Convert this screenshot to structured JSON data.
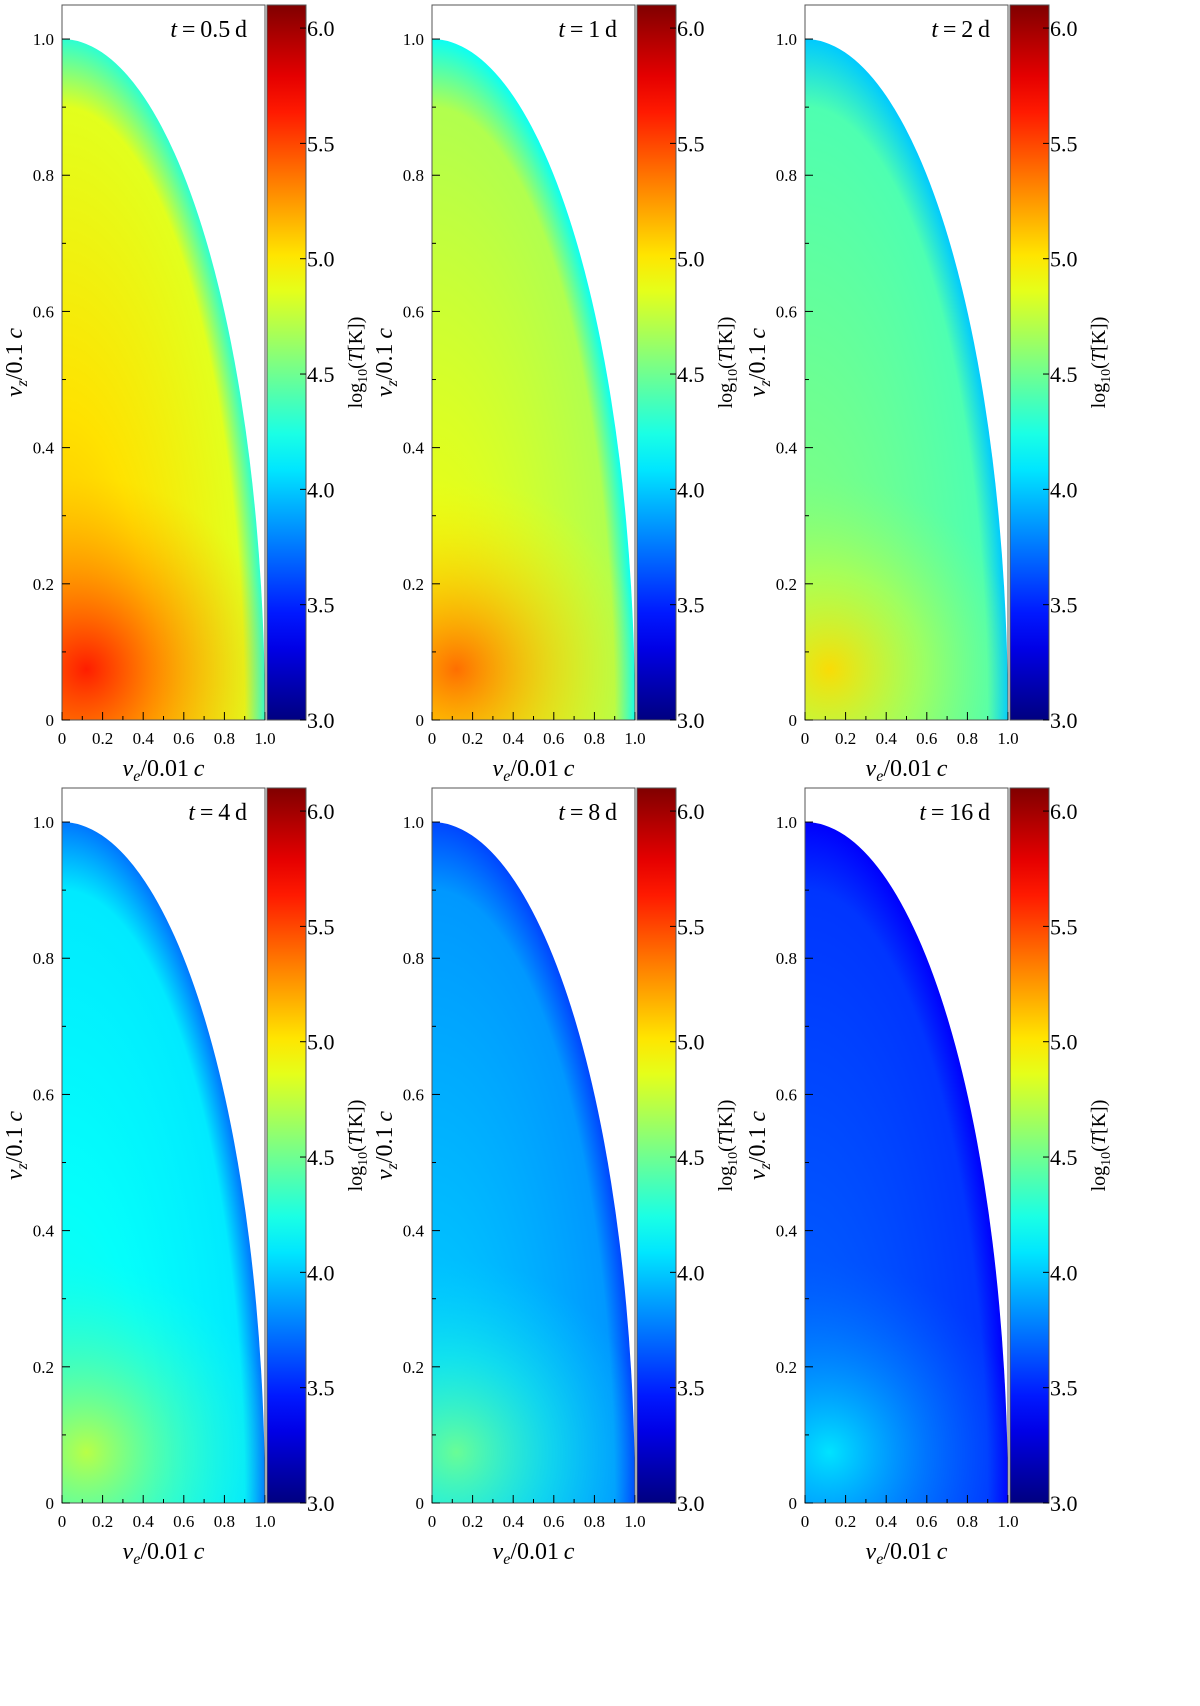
{
  "figure": {
    "ylabel": {
      "var": "v",
      "sub": "z",
      "rest": "/0.1 c"
    },
    "xlabel": {
      "var": "v",
      "sub": "e",
      "rest": "/0.01 c"
    },
    "colorbar_label": {
      "pre": "log",
      "sub": "10",
      "open": "(",
      "var": "T",
      "bracket": "[K])"
    }
  },
  "chart_data": {
    "type": "heatmap",
    "description": "Temperature maps of an elliptical ejecta quadrant at six epochs",
    "xlim": [
      0,
      1.0
    ],
    "ylim": [
      0,
      1.05
    ],
    "xticks": [
      "0",
      "0.2",
      "0.4",
      "0.6",
      "0.8",
      "1.0"
    ],
    "yticks": [
      "0",
      "0.2",
      "0.4",
      "0.6",
      "0.8",
      "1.0"
    ],
    "colorbar": {
      "colormap": "jet",
      "range": [
        3.0,
        6.1
      ],
      "ticks": [
        "3.0",
        "3.5",
        "4.0",
        "4.5",
        "5.0",
        "5.5",
        "6.0"
      ]
    },
    "panels": [
      {
        "label": "t = 0.5 d",
        "t": "0.5",
        "core_log10T": 5.65,
        "mid_log10T": 5.2,
        "outer_log10T": 4.85,
        "edge_log10T": 4.3
      },
      {
        "label": "t = 1 d",
        "t": "1",
        "core_log10T": 5.4,
        "mid_log10T": 4.95,
        "outer_log10T": 4.7,
        "edge_log10T": 4.2
      },
      {
        "label": "t = 2 d",
        "t": "2",
        "core_log10T": 5.05,
        "mid_log10T": 4.6,
        "outer_log10T": 4.4,
        "edge_log10T": 4.0
      },
      {
        "label": "t = 4 d",
        "t": "4",
        "core_log10T": 4.75,
        "mid_log10T": 4.25,
        "outer_log10T": 4.1,
        "edge_log10T": 3.75
      },
      {
        "label": "t = 8 d",
        "t": "8",
        "core_log10T": 4.5,
        "mid_log10T": 4.05,
        "outer_log10T": 3.85,
        "edge_log10T": 3.6
      },
      {
        "label": "t = 16 d",
        "t": "16",
        "core_log10T": 4.1,
        "mid_log10T": 3.72,
        "outer_log10T": 3.55,
        "edge_log10T": 3.38
      }
    ]
  }
}
